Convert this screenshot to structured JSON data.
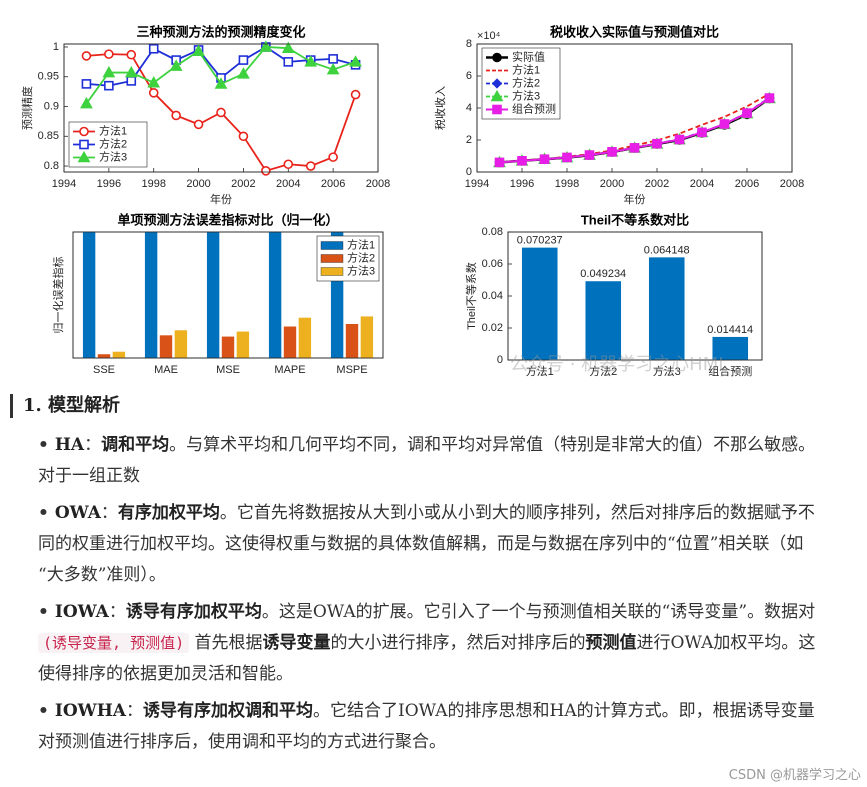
{
  "chart_data": [
    {
      "type": "line",
      "title": "三种预测方法的预测精度变化",
      "xlabel": "年份",
      "ylabel": "预测精度",
      "x": [
        1995,
        1996,
        1997,
        1998,
        1999,
        2000,
        2001,
        2002,
        2003,
        2004,
        2005,
        2006,
        2007
      ],
      "xlim": [
        1994,
        2008
      ],
      "xticks": [
        1994,
        1996,
        1998,
        2000,
        2002,
        2004,
        2006,
        2008
      ],
      "ylim": [
        0.79,
        1.005
      ],
      "yticks": [
        0.8,
        0.85,
        0.9,
        0.95,
        1
      ],
      "legend": "southwest",
      "series": [
        {
          "name": "方法1",
          "color": "#e8231b",
          "marker": "o",
          "values": [
            0.985,
            0.988,
            0.987,
            0.923,
            0.885,
            0.87,
            0.89,
            0.85,
            0.792,
            0.803,
            0.8,
            0.815,
            0.92
          ]
        },
        {
          "name": "方法2",
          "color": "#1f2fd8",
          "marker": "s",
          "values": [
            0.938,
            0.935,
            0.943,
            0.997,
            0.978,
            0.995,
            0.948,
            0.978,
            1.0,
            0.975,
            0.978,
            0.98,
            0.97
          ]
        },
        {
          "name": "方法3",
          "color": "#3ed23e",
          "marker": "^",
          "marker_fill": true,
          "values": [
            0.905,
            0.957,
            0.957,
            0.94,
            0.968,
            0.993,
            0.938,
            0.955,
            1.0,
            0.998,
            0.975,
            0.962,
            0.975
          ]
        }
      ]
    },
    {
      "type": "line",
      "title": "税收收入实际值与预测值对比",
      "xlabel": "年份",
      "ylabel": "税收收入",
      "y_multiplier": "×10⁴",
      "x": [
        1995,
        1996,
        1997,
        1998,
        1999,
        2000,
        2001,
        2002,
        2003,
        2004,
        2005,
        2006,
        2007
      ],
      "xlim": [
        1994,
        2008
      ],
      "xticks": [
        1994,
        1996,
        1998,
        2000,
        2002,
        2004,
        2006,
        2008
      ],
      "ylim": [
        0,
        8
      ],
      "yticks": [
        0,
        2,
        4,
        6,
        8
      ],
      "legend": "northwest",
      "series": [
        {
          "name": "实际值",
          "color": "#000000",
          "marker": "o",
          "marker_fill": true,
          "width": 2.5,
          "values": [
            0.6,
            0.7,
            0.8,
            0.9,
            1.05,
            1.25,
            1.5,
            1.75,
            2.0,
            2.45,
            2.95,
            3.6,
            4.6
          ]
        },
        {
          "name": "方法1",
          "color": "#e8231b",
          "dash": true,
          "values": [
            0.62,
            0.72,
            0.82,
            0.95,
            1.12,
            1.35,
            1.65,
            1.98,
            2.4,
            2.95,
            3.45,
            4.1,
            4.9
          ]
        },
        {
          "name": "方法2",
          "color": "#1f2fd8",
          "dash": true,
          "marker": "d",
          "marker_fill": true,
          "values": [
            0.6,
            0.7,
            0.8,
            0.92,
            1.07,
            1.27,
            1.52,
            1.78,
            2.05,
            2.5,
            3.0,
            3.7,
            4.65
          ]
        },
        {
          "name": "方法3",
          "color": "#3ed23e",
          "dash": true,
          "marker": "^",
          "marker_fill": true,
          "values": [
            0.6,
            0.7,
            0.8,
            0.9,
            1.06,
            1.26,
            1.5,
            1.76,
            2.03,
            2.47,
            2.98,
            3.65,
            4.6
          ]
        },
        {
          "name": "组合预测",
          "color": "#e61ee6",
          "marker": "s",
          "marker_fill": true,
          "width": 2,
          "values": [
            0.6,
            0.7,
            0.8,
            0.91,
            1.06,
            1.26,
            1.51,
            1.77,
            2.03,
            2.48,
            3.0,
            3.68,
            4.62
          ]
        }
      ]
    },
    {
      "type": "bar",
      "title": "单项预测方法误差指标对比（归一化）",
      "ylabel": "归一化误差指标",
      "categories": [
        "SSE",
        "MAE",
        "MSE",
        "MAPE",
        "MSPE"
      ],
      "ylim": [
        0,
        1
      ],
      "legend": "northeast",
      "series": [
        {
          "name": "方法1",
          "color": "#0072bd",
          "values": [
            1,
            1,
            1,
            1,
            1
          ]
        },
        {
          "name": "方法2",
          "color": "#d95319",
          "values": [
            0.03,
            0.18,
            0.17,
            0.25,
            0.27
          ]
        },
        {
          "name": "方法3",
          "color": "#edb120",
          "values": [
            0.05,
            0.22,
            0.21,
            0.32,
            0.33
          ]
        }
      ]
    },
    {
      "type": "bar",
      "title": "Theil不等系数对比",
      "ylabel": "Theil不等系数",
      "categories": [
        "方法1",
        "方法2",
        "方法3",
        "组合预测"
      ],
      "values": [
        0.070237,
        0.049234,
        0.064148,
        0.014414
      ],
      "value_labels": [
        "0.070237",
        "0.049234",
        "0.064148",
        "0.014414"
      ],
      "color": "#0072bd",
      "ylim": [
        0,
        0.08
      ],
      "yticks": [
        0,
        0.02,
        0.04,
        0.06,
        0.08
      ]
    }
  ],
  "watermark": "公众号 · 机器学习之心HML",
  "document": {
    "heading": "1. 模型解析",
    "paragraphs": [
      [
        {
          "t": "HA",
          "bold": true
        },
        {
          "t": "："
        },
        {
          "t": "调和平均",
          "bold": true
        },
        {
          "t": "。与算术平均和几何平均不同，调和平均对异常值（特别是非常大的值）不那么敏感。对于一组正数"
        }
      ],
      [
        {
          "t": "OWA",
          "bold": true
        },
        {
          "t": "："
        },
        {
          "t": "有序加权平均",
          "bold": true
        },
        {
          "t": "。它首先将数据按从大到小或从小到大的顺序排列，然后对排序后的数据赋予不同的权重进行加权平均。这使得权重与数据的具体数值解耦，而是与数据在序列中的“位置”相关联（如“大多数”准则）。"
        }
      ],
      [
        {
          "t": "IOWA",
          "bold": true
        },
        {
          "t": "："
        },
        {
          "t": "诱导有序加权平均",
          "bold": true
        },
        {
          "t": "。这是OWA的扩展。它引入了一个与预测值相关联的“诱导变量”。数据对 "
        },
        {
          "t": "(诱导变量, 预测值)",
          "code": true
        },
        {
          "t": " 首先根据"
        },
        {
          "t": "诱导变量",
          "bold": true
        },
        {
          "t": "的大小进行排序，然后对排序后的"
        },
        {
          "t": "预测值",
          "bold": true
        },
        {
          "t": "进行OWA加权平均。这使得排序的依据更加灵活和智能。"
        }
      ],
      [
        {
          "t": "IOWHA",
          "bold": true
        },
        {
          "t": "："
        },
        {
          "t": "诱导有序加权调和平均",
          "bold": true
        },
        {
          "t": "。它结合了IOWA的排序思想和HA的计算方式。即，根据诱导变量对预测值进行排序后，使用调和平均的方式进行聚合。"
        }
      ]
    ],
    "footer": "CSDN @机器学习之心"
  }
}
